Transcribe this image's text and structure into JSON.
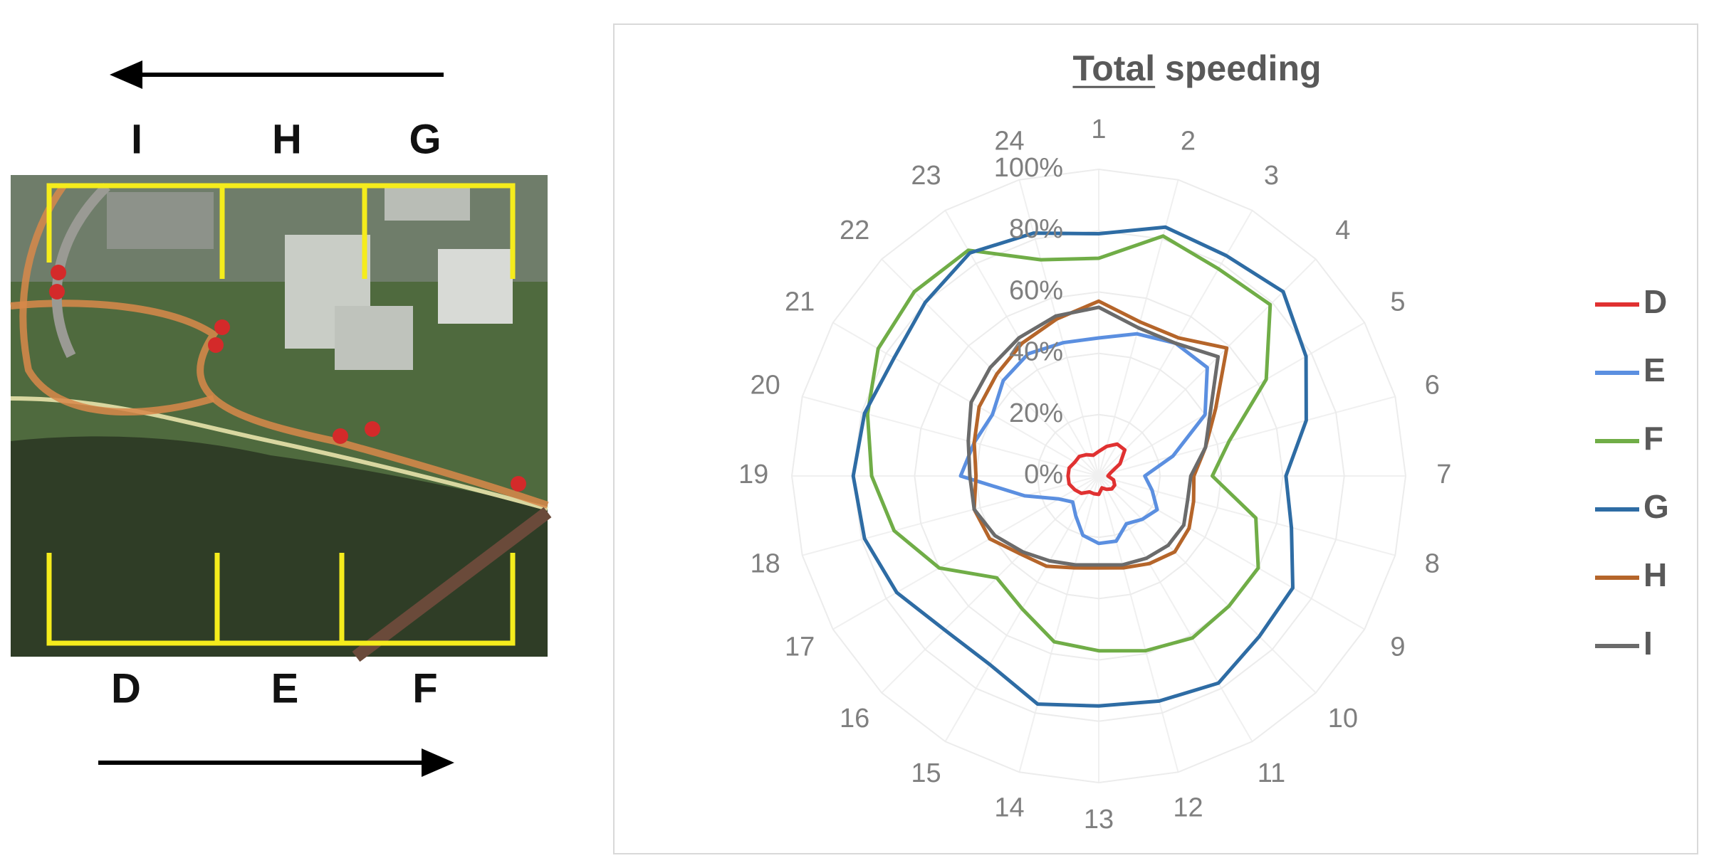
{
  "map": {
    "top_labels": [
      "I",
      "H",
      "G"
    ],
    "bottom_labels": [
      "D",
      "E",
      "F"
    ]
  },
  "chart_data": {
    "type": "radar",
    "title": "Total speeding",
    "categories": [
      "1",
      "2",
      "3",
      "4",
      "5",
      "6",
      "7",
      "8",
      "9",
      "10",
      "11",
      "12",
      "13",
      "14",
      "15",
      "16",
      "17",
      "18",
      "19",
      "20",
      "21",
      "22",
      "23",
      "24"
    ],
    "rlim": [
      0,
      100
    ],
    "rticks": [
      {
        "value": 0,
        "label": "0%"
      },
      {
        "value": 20,
        "label": "20%"
      },
      {
        "value": 40,
        "label": "40%"
      },
      {
        "value": 60,
        "label": "60%"
      },
      {
        "value": 80,
        "label": "80%"
      },
      {
        "value": 100,
        "label": "100%"
      }
    ],
    "grid": true,
    "legend": "right",
    "series": [
      {
        "name": "D",
        "color": "#e03131",
        "values": [
          8,
          10,
          12,
          12,
          8,
          4,
          3,
          5,
          6,
          6,
          5,
          4,
          6,
          6,
          6,
          8,
          9,
          10,
          10,
          10,
          9,
          9,
          8,
          7
        ]
      },
      {
        "name": "E",
        "color": "#5b8fe0",
        "values": [
          45,
          48,
          50,
          50,
          40,
          25,
          15,
          18,
          22,
          20,
          18,
          22,
          22,
          20,
          15,
          12,
          15,
          25,
          45,
          42,
          40,
          44,
          46,
          45
        ]
      },
      {
        "name": "F",
        "color": "#70ad47",
        "values": [
          71,
          81,
          78,
          79,
          63,
          44,
          37,
          53,
          60,
          60,
          61,
          59,
          57,
          56,
          50,
          47,
          60,
          69,
          74,
          78,
          83,
          85,
          85,
          73
        ]
      },
      {
        "name": "G",
        "color": "#2e6ca4",
        "values": [
          79,
          84,
          83,
          85,
          78,
          70,
          61,
          65,
          73,
          74,
          78,
          76,
          75,
          77,
          71,
          71,
          76,
          79,
          80,
          79,
          77,
          80,
          84,
          82
        ]
      },
      {
        "name": "H",
        "color": "#b5652a",
        "values": [
          57,
          52,
          52,
          59,
          44,
          36,
          31,
          32,
          34,
          35,
          33,
          31,
          30,
          31,
          34,
          36,
          41,
          42,
          40,
          42,
          45,
          47,
          50,
          53
        ]
      },
      {
        "name": "I",
        "color": "#6b6b6b",
        "values": [
          55,
          50,
          50,
          55,
          42,
          36,
          30,
          30,
          32,
          32,
          31,
          30,
          29,
          30,
          32,
          35,
          39,
          42,
          42,
          44,
          48,
          50,
          52,
          54
        ]
      }
    ]
  }
}
